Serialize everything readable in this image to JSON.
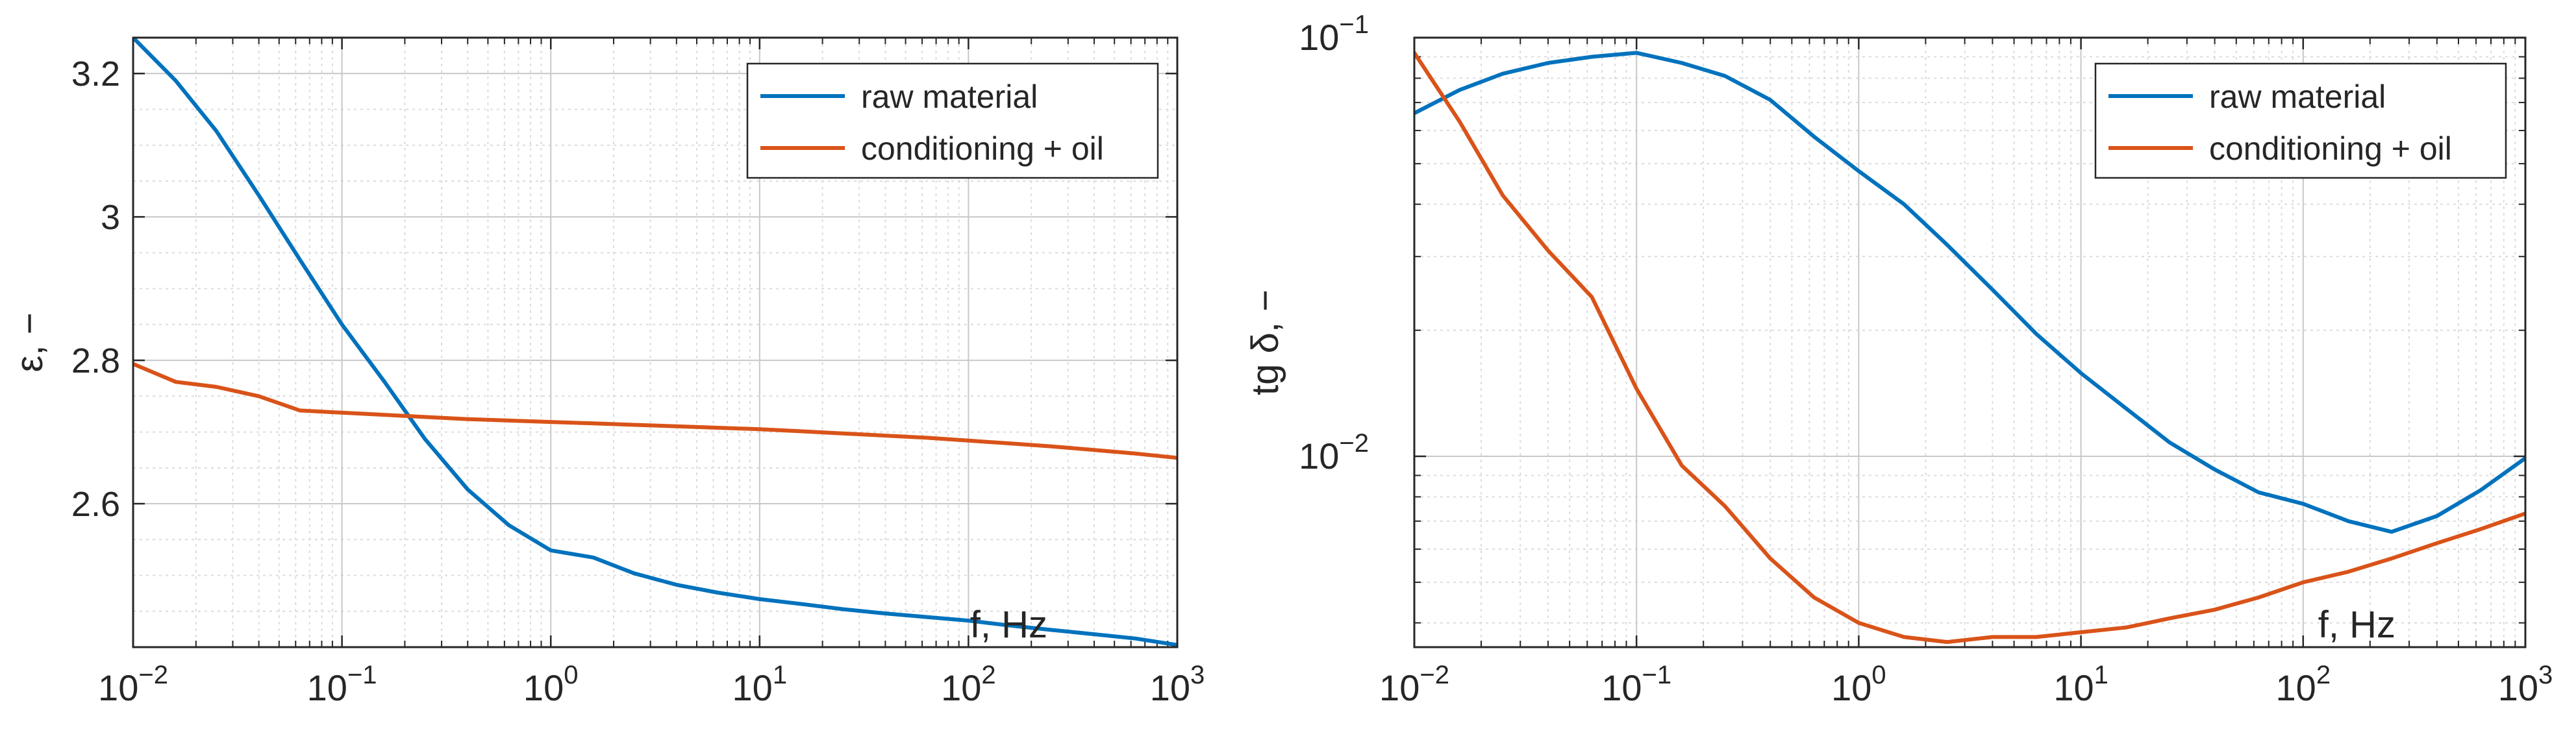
{
  "chart_data": [
    {
      "type": "line",
      "title": "",
      "xlabel": "f, Hz",
      "ylabel": "ε, −",
      "xscale": "log",
      "yscale": "linear",
      "xlim": [
        0.01,
        1000
      ],
      "ylim": [
        2.4,
        3.25
      ],
      "grid": true,
      "legend_position": "top-right",
      "xticks": [
        {
          "value": 0.01,
          "base": "10",
          "exp": "−2"
        },
        {
          "value": 0.1,
          "base": "10",
          "exp": "−1"
        },
        {
          "value": 1,
          "base": "10",
          "exp": "0"
        },
        {
          "value": 10,
          "base": "10",
          "exp": "1"
        },
        {
          "value": 100,
          "base": "10",
          "exp": "2"
        },
        {
          "value": 1000,
          "base": "10",
          "exp": "3"
        }
      ],
      "yticks": [
        {
          "value": 2.6,
          "label": "2.6"
        },
        {
          "value": 2.8,
          "label": "2.8"
        },
        {
          "value": 3.0,
          "label": "3"
        },
        {
          "value": 3.2,
          "label": "3.2"
        }
      ],
      "series": [
        {
          "name": "raw material",
          "color": "#0072BD",
          "x": [
            0.01,
            0.016,
            0.025,
            0.04,
            0.063,
            0.1,
            0.16,
            0.25,
            0.4,
            0.63,
            1,
            1.6,
            2.5,
            4,
            6.3,
            10,
            16,
            25,
            40,
            63,
            100,
            160,
            250,
            400,
            630,
            1000
          ],
          "y": [
            3.25,
            3.19,
            3.12,
            3.03,
            2.94,
            2.85,
            2.77,
            2.69,
            2.62,
            2.57,
            2.535,
            2.525,
            2.503,
            2.487,
            2.476,
            2.467,
            2.46,
            2.453,
            2.447,
            2.442,
            2.437,
            2.43,
            2.424,
            2.418,
            2.412,
            2.403
          ]
        },
        {
          "name": "conditioning + oil",
          "color": "#D95319",
          "x": [
            0.01,
            0.016,
            0.025,
            0.04,
            0.063,
            0.1,
            0.16,
            0.25,
            0.4,
            0.63,
            1,
            1.6,
            2.5,
            4,
            6.3,
            10,
            16,
            25,
            40,
            63,
            100,
            160,
            250,
            400,
            630,
            1000
          ],
          "y": [
            2.795,
            2.77,
            2.763,
            2.75,
            2.73,
            2.727,
            2.724,
            2.721,
            2.718,
            2.716,
            2.714,
            2.712,
            2.71,
            2.708,
            2.706,
            2.704,
            2.701,
            2.698,
            2.695,
            2.692,
            2.688,
            2.684,
            2.68,
            2.675,
            2.67,
            2.664
          ]
        }
      ]
    },
    {
      "type": "line",
      "title": "",
      "xlabel": "f, Hz",
      "ylabel": "tg δ, −",
      "xscale": "log",
      "yscale": "log",
      "xlim": [
        0.01,
        1000
      ],
      "ylim": [
        0.0035,
        0.1
      ],
      "grid": true,
      "legend_position": "top-right",
      "xticks": [
        {
          "value": 0.01,
          "base": "10",
          "exp": "−2"
        },
        {
          "value": 0.1,
          "base": "10",
          "exp": "−1"
        },
        {
          "value": 1,
          "base": "10",
          "exp": "0"
        },
        {
          "value": 10,
          "base": "10",
          "exp": "1"
        },
        {
          "value": 100,
          "base": "10",
          "exp": "2"
        },
        {
          "value": 1000,
          "base": "10",
          "exp": "3"
        }
      ],
      "yticks": [
        {
          "value": 0.01,
          "base": "10",
          "exp": "−2"
        },
        {
          "value": 0.1,
          "base": "10",
          "exp": "−1"
        }
      ],
      "series": [
        {
          "name": "raw material",
          "color": "#0072BD",
          "x": [
            0.01,
            0.016,
            0.025,
            0.04,
            0.063,
            0.1,
            0.16,
            0.25,
            0.4,
            0.63,
            1,
            1.6,
            2.5,
            4,
            6.3,
            10,
            16,
            25,
            40,
            63,
            100,
            160,
            250,
            400,
            630,
            1000
          ],
          "y": [
            0.066,
            0.075,
            0.082,
            0.087,
            0.09,
            0.092,
            0.087,
            0.081,
            0.071,
            0.058,
            0.048,
            0.04,
            0.032,
            0.025,
            0.0196,
            0.0158,
            0.013,
            0.0108,
            0.0093,
            0.0082,
            0.0077,
            0.007,
            0.0066,
            0.0072,
            0.0083,
            0.0099
          ]
        },
        {
          "name": "conditioning + oil",
          "color": "#D95319",
          "x": [
            0.01,
            0.016,
            0.025,
            0.04,
            0.063,
            0.1,
            0.16,
            0.25,
            0.4,
            0.63,
            1,
            1.6,
            2.5,
            4,
            6.3,
            10,
            16,
            25,
            40,
            63,
            100,
            160,
            250,
            400,
            630,
            1000
          ],
          "y": [
            0.092,
            0.063,
            0.042,
            0.031,
            0.024,
            0.0145,
            0.0095,
            0.0076,
            0.0057,
            0.0046,
            0.004,
            0.0037,
            0.0036,
            0.0037,
            0.0037,
            0.0038,
            0.0039,
            0.0041,
            0.0043,
            0.0046,
            0.005,
            0.0053,
            0.0057,
            0.0062,
            0.0067,
            0.0073
          ]
        }
      ]
    }
  ]
}
